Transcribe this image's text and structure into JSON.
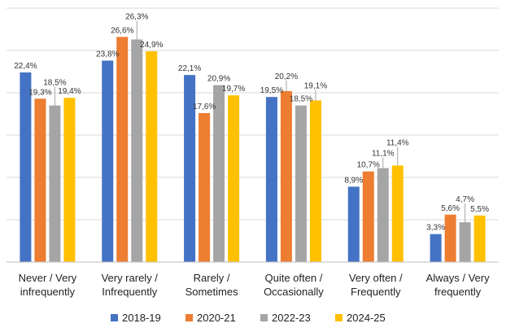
{
  "chart_data": {
    "type": "bar",
    "categories": [
      [
        "Never / Very",
        "infrequently"
      ],
      [
        "Very rarely /",
        "Infrequently"
      ],
      [
        "Rarely /",
        "Sometimes"
      ],
      [
        "Quite often /",
        "Occasionally"
      ],
      [
        "Very often /",
        "Frequently"
      ],
      [
        "Always / Very",
        "frequently"
      ]
    ],
    "series": [
      {
        "name": "2018-19",
        "color": "#4472C4",
        "values": [
          22.4,
          23.8,
          22.1,
          19.5,
          8.9,
          3.3
        ],
        "labels": [
          "22,4%",
          "23,8%",
          "22,1%",
          "19,5%",
          "8,9%",
          "3,3%"
        ]
      },
      {
        "name": "2020-21",
        "color": "#ED7D31",
        "values": [
          19.3,
          26.6,
          17.6,
          20.2,
          10.7,
          5.6
        ],
        "labels": [
          "19,3%",
          "26,6%",
          "17,6%",
          "20,2%",
          "10,7%",
          "5,6%"
        ]
      },
      {
        "name": "2022-23",
        "color": "#A5A5A5",
        "values": [
          18.5,
          26.3,
          20.9,
          18.5,
          11.1,
          4.7
        ],
        "labels": [
          "18,5%",
          "26,3%",
          "20,9%",
          "18,5%",
          "11,1%",
          "4,7%"
        ]
      },
      {
        "name": "2024-25",
        "color": "#FFC000",
        "values": [
          19.4,
          24.9,
          19.7,
          19.1,
          11.4,
          5.5
        ],
        "labels": [
          "19,4%",
          "24,9%",
          "19,7%",
          "19,1%",
          "11,4%",
          "5,5%"
        ]
      }
    ],
    "ylim": [
      0,
      30
    ],
    "grid": true,
    "legend_position": "bottom"
  }
}
